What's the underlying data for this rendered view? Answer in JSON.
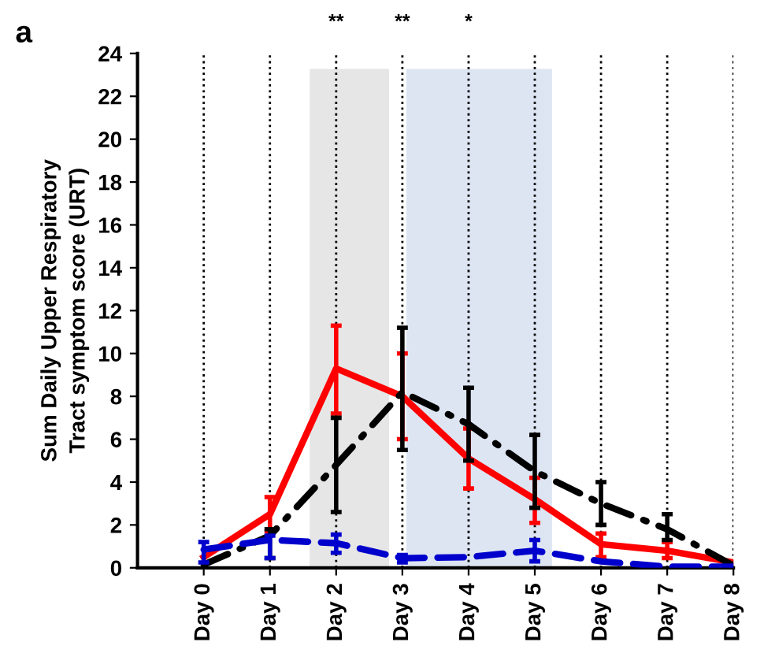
{
  "chart_data": {
    "type": "line",
    "title": "a",
    "ylabel": "Sum Daily Upper Respiratory\nTract symptom score (URT)",
    "categories": [
      "Day 0",
      "Day 1",
      "Day 2",
      "Day 3",
      "Day 4",
      "Day 5",
      "Day 6",
      "Day 7",
      "Day 8"
    ],
    "ylim": [
      0,
      24
    ],
    "yticks": [
      0,
      2,
      4,
      6,
      8,
      10,
      12,
      14,
      16,
      18,
      20,
      22,
      24
    ],
    "grid": "x",
    "marker": "none",
    "annotations": [
      "**",
      "**",
      "*"
    ],
    "series": [
      {
        "color": "#ff0000",
        "line_style": "solid",
        "values": [
          0.5,
          2.5,
          9.3,
          8.0,
          5.1,
          3.2,
          1.1,
          0.8,
          0.25
        ],
        "errors": [
          null,
          [
            1.7,
            3.3
          ],
          [
            7.2,
            11.3
          ],
          [
            6.0,
            10.0
          ],
          [
            3.7,
            6.5
          ],
          [
            2.1,
            4.2
          ],
          [
            0.5,
            1.6
          ],
          [
            0.45,
            1.2
          ],
          null
        ]
      },
      {
        "color": "#000000",
        "line_style": "dashdot",
        "values": [
          0.15,
          1.5,
          4.8,
          8.2,
          6.7,
          4.5,
          3.0,
          1.8,
          0.1
        ],
        "errors": [
          null,
          [
            0.45,
            1.8
          ],
          [
            2.6,
            7.0
          ],
          [
            5.5,
            11.2
          ],
          [
            5.0,
            8.4
          ],
          [
            2.8,
            6.2
          ],
          [
            2.0,
            4.0
          ],
          [
            1.3,
            2.5
          ],
          null
        ]
      },
      {
        "color": "#0000cc",
        "line_style": "dashed",
        "values": [
          0.85,
          1.3,
          1.15,
          0.45,
          0.5,
          0.8,
          0.3,
          0.05,
          0.05
        ],
        "errors": [
          [
            0.25,
            1.2
          ],
          [
            0.45,
            1.5
          ],
          [
            0.7,
            1.55
          ],
          [
            0.25,
            0.6
          ],
          null,
          [
            0.3,
            1.3
          ],
          null,
          null,
          null
        ]
      }
    ]
  }
}
